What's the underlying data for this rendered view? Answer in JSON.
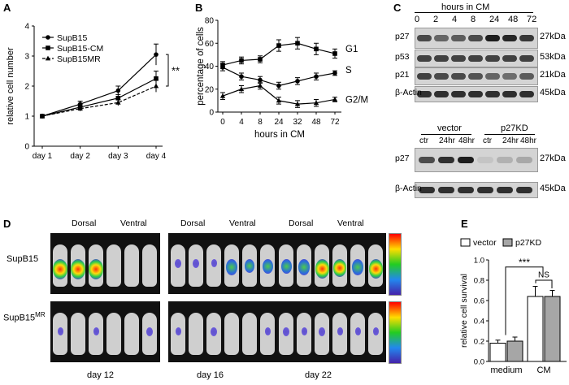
{
  "panels": {
    "a": "A",
    "b": "B",
    "c": "C",
    "d": "D",
    "e": "E"
  },
  "panel_a": {
    "chart_data": {
      "type": "line",
      "categories": [
        "day 1",
        "day 2",
        "day 3",
        "day 4"
      ],
      "ylabel": "relative cell number",
      "xlabel": "",
      "ylim": [
        0,
        4
      ],
      "yticks": [
        "0",
        "1",
        "2",
        "3",
        "4"
      ],
      "series": [
        {
          "name": "SupB15",
          "values": [
            1.0,
            1.4,
            1.85,
            3.05
          ],
          "errors": [
            0.03,
            0.1,
            0.15,
            0.35
          ]
        },
        {
          "name": "SupB15-CM",
          "values": [
            1.0,
            1.3,
            1.6,
            2.25
          ],
          "errors": [
            0.03,
            0.1,
            0.12,
            0.25
          ]
        },
        {
          "name": "SupB15MR",
          "values": [
            1.0,
            1.25,
            1.45,
            2.0
          ],
          "errors": [
            0.03,
            0.08,
            0.1,
            0.2
          ]
        }
      ],
      "significance": "**"
    }
  },
  "panel_b": {
    "chart_data": {
      "type": "line",
      "x": [
        "0",
        "4",
        "8",
        "24",
        "32",
        "48",
        "72"
      ],
      "xlabel": "hours in CM",
      "ylabel": "percentage of cells",
      "ylim": [
        0,
        80
      ],
      "yticks": [
        "0",
        "20",
        "40",
        "60",
        "80"
      ],
      "series": [
        {
          "name": "G1",
          "values": [
            41,
            45,
            46,
            58,
            60,
            55,
            51
          ],
          "errors": [
            3,
            3,
            3,
            5,
            5,
            5,
            4
          ]
        },
        {
          "name": "S",
          "values": [
            39,
            31,
            28,
            23,
            27,
            31,
            34
          ],
          "errors": [
            3,
            3,
            3,
            3,
            3,
            3,
            2
          ]
        },
        {
          "name": "G2/M",
          "values": [
            14,
            20,
            23,
            10,
            7,
            8,
            11
          ],
          "errors": [
            3,
            3,
            3,
            3,
            3,
            3,
            2
          ]
        }
      ]
    }
  },
  "panel_c": {
    "top_header": "hours in CM",
    "top_lanes": [
      "0",
      "2",
      "4",
      "8",
      "24",
      "48",
      "72"
    ],
    "top_rows": [
      {
        "protein": "p27",
        "size": "27kDa"
      },
      {
        "protein": "p53",
        "size": "53kDa"
      },
      {
        "protein": "p21",
        "size": "21kDa"
      },
      {
        "protein": "β-Actin",
        "size": "45kDa"
      }
    ],
    "bottom_groups": [
      "vector",
      "p27KD"
    ],
    "bottom_lanes": [
      "ctr",
      "24hr",
      "48hr",
      "ctr",
      "24hr",
      "48hr"
    ],
    "bottom_rows": [
      {
        "protein": "p27",
        "size": "27kDa"
      },
      {
        "protein": "β-Actin",
        "size": "45kDa"
      }
    ]
  },
  "panel_d": {
    "col_labels": [
      "Dorsal",
      "Ventral",
      "Dorsal",
      "Ventral",
      "Dorsal",
      "Ventral"
    ],
    "row_labels": [
      "SupB15",
      "SupB15"
    ],
    "row2_superscript": "MR",
    "day_labels": [
      "day 12",
      "day 16",
      "day 22"
    ]
  },
  "panel_e": {
    "chart_data": {
      "type": "bar",
      "categories": [
        "medium",
        "CM"
      ],
      "ylabel": "relative cell survival",
      "ylim": [
        0,
        1.0
      ],
      "yticks": [
        "0.0",
        "0.2",
        "0.4",
        "0.6",
        "0.8",
        "1.0"
      ],
      "series": [
        {
          "name": "vector",
          "values": [
            0.18,
            0.64
          ],
          "errors": [
            0.03,
            0.1
          ],
          "color": "#ffffff"
        },
        {
          "name": "p27KD",
          "values": [
            0.2,
            0.64
          ],
          "errors": [
            0.04,
            0.06
          ],
          "color": "#a6a6a6"
        }
      ],
      "annotations": [
        "***",
        "NS"
      ]
    }
  }
}
